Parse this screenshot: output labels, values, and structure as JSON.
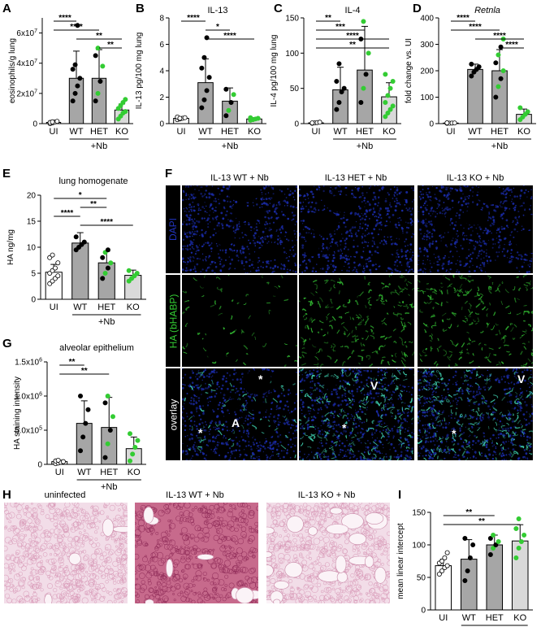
{
  "panels": {
    "A": {
      "label": "A"
    },
    "B": {
      "label": "B"
    },
    "C": {
      "label": "C"
    },
    "D": {
      "label": "D"
    },
    "E": {
      "label": "E"
    },
    "F": {
      "label": "F"
    },
    "G": {
      "label": "G"
    },
    "H": {
      "label": "H"
    },
    "I": {
      "label": "I"
    }
  },
  "nb_label": "+Nb",
  "chart_data": [
    {
      "id": "A",
      "type": "bar",
      "title": "",
      "ylabel": "eosinophils/g lung",
      "ylim": [
        0,
        70000000
      ],
      "yticks": [
        "0",
        "2x10^7",
        "4x10^7",
        "6x10^7"
      ],
      "ytick_values": [
        0,
        20000000,
        40000000,
        60000000
      ],
      "categories": [
        "UI",
        "WT",
        "HET",
        "KO"
      ],
      "values": [
        800000,
        30000000,
        30000000,
        9000000
      ],
      "errors": [
        400000,
        18000000,
        19000000,
        4000000
      ],
      "points": [
        [
          0,
          0.5,
          1,
          1.5,
          0.8,
          1.2
        ],
        [
          15,
          20,
          25,
          30,
          36,
          39,
          65
        ],
        [
          15,
          20,
          28,
          38,
          45,
          50
        ],
        [
          3,
          5,
          7,
          8,
          10,
          12,
          14,
          16
        ]
      ],
      "point_scale": 1000000,
      "sig": [
        {
          "from": 0,
          "to": 1,
          "text": "****"
        },
        {
          "from": 0,
          "to": 2,
          "text": "****"
        },
        {
          "from": 1,
          "to": 3,
          "text": "**"
        },
        {
          "from": 2,
          "to": 3,
          "text": "**"
        }
      ]
    },
    {
      "id": "B",
      "type": "bar",
      "title": "IL-13",
      "ylabel": "IL-13 pg/100 mg lung",
      "ylim": [
        0,
        8
      ],
      "yticks": [
        "0",
        "2",
        "4",
        "6",
        "8"
      ],
      "ytick_values": [
        0,
        2,
        4,
        6,
        8
      ],
      "categories": [
        "UI",
        "WT",
        "HET",
        "KO"
      ],
      "values": [
        0.4,
        3.1,
        1.7,
        0.35
      ],
      "errors": [
        0.1,
        1.8,
        1.0,
        0.1
      ],
      "points": [
        [
          0.3,
          0.35,
          0.4,
          0.45,
          0.5,
          0.4
        ],
        [
          1.2,
          1.8,
          2.5,
          3.5,
          4.2,
          5.0,
          6.5
        ],
        [
          0.6,
          1.0,
          1.6,
          2.2,
          2.6
        ],
        [
          0.25,
          0.3,
          0.35,
          0.4,
          0.45
        ]
      ],
      "point_scale": 1,
      "sig": [
        {
          "from": 0,
          "to": 1,
          "text": "****"
        },
        {
          "from": 1,
          "to": 2,
          "text": "*"
        },
        {
          "from": 1,
          "to": 3,
          "text": "****"
        }
      ]
    },
    {
      "id": "C",
      "type": "bar",
      "title": "IL-4",
      "ylabel": "IL-4 pg/100 mg lung",
      "ylim": [
        0,
        150
      ],
      "yticks": [
        "0",
        "50",
        "100",
        "150"
      ],
      "ytick_values": [
        0,
        50,
        100,
        150
      ],
      "categories": [
        "UI",
        "WT",
        "HET",
        "KO"
      ],
      "values": [
        1,
        48,
        76,
        38
      ],
      "errors": [
        1,
        32,
        62,
        20
      ],
      "points": [
        [
          0.5,
          1,
          1.5,
          2,
          1
        ],
        [
          20,
          30,
          45,
          50,
          60,
          85
        ],
        [
          30,
          50,
          70,
          100,
          120,
          145
        ],
        [
          10,
          15,
          20,
          25,
          30,
          40,
          50,
          60,
          70
        ]
      ],
      "point_scale": 1,
      "sig": [
        {
          "from": 0,
          "to": 1,
          "text": "**"
        },
        {
          "from": 0,
          "to": 2,
          "text": "***"
        },
        {
          "from": 0,
          "to": 3,
          "text": "****"
        },
        {
          "from": 0,
          "to": 3,
          "text": "**"
        }
      ]
    },
    {
      "id": "D",
      "type": "bar",
      "title": "Retnla",
      "ylabel": "fold change vs. UI",
      "ylim": [
        0,
        400
      ],
      "yticks": [
        "0",
        "100",
        "200",
        "300",
        "400"
      ],
      "ytick_values": [
        0,
        100,
        200,
        300,
        400
      ],
      "categories": [
        "UI",
        "WT",
        "HET",
        "KO"
      ],
      "values": [
        2,
        205,
        200,
        35
      ],
      "errors": [
        1,
        20,
        80,
        20
      ],
      "points": [
        [
          1,
          1.5,
          2,
          2.5,
          3
        ],
        [
          180,
          195,
          205,
          215,
          225
        ],
        [
          100,
          140,
          170,
          200,
          230,
          260,
          290,
          320
        ],
        [
          15,
          25,
          35,
          45,
          60
        ]
      ],
      "point_scale": 1,
      "sig": [
        {
          "from": 0,
          "to": 1,
          "text": "****"
        },
        {
          "from": 0,
          "to": 2,
          "text": "****"
        },
        {
          "from": 1,
          "to": 3,
          "text": "****"
        },
        {
          "from": 2,
          "to": 3,
          "text": "****"
        }
      ]
    },
    {
      "id": "E",
      "type": "bar",
      "title": "lung homogenate",
      "ylabel": "HA ng/mg",
      "ylim": [
        0,
        20
      ],
      "yticks": [
        "0",
        "5",
        "10",
        "15",
        "20"
      ],
      "ytick_values": [
        0,
        5,
        10,
        15,
        20
      ],
      "categories": [
        "UI",
        "WT",
        "HET",
        "KO"
      ],
      "values": [
        5.2,
        10.8,
        7.0,
        4.6
      ],
      "errors": [
        1.5,
        2.0,
        2.2,
        1.0
      ],
      "points": [
        [
          3,
          3.5,
          4,
          4.5,
          5,
          5.5,
          6,
          7,
          8,
          8.5
        ],
        [
          9.5,
          10,
          10.5,
          11,
          12
        ],
        [
          4,
          5,
          6,
          7,
          8,
          9,
          9.5
        ],
        [
          3.5,
          4,
          4.5,
          5,
          5.5
        ]
      ],
      "point_scale": 1,
      "sig": [
        {
          "from": 0,
          "to": 2,
          "text": "*"
        },
        {
          "from": 1,
          "to": 2,
          "text": "**"
        },
        {
          "from": 0,
          "to": 1,
          "text": "****"
        },
        {
          "from": 1,
          "to": 3,
          "text": "****"
        }
      ]
    },
    {
      "id": "G",
      "type": "bar",
      "title": "alveolar epithelium",
      "ylabel": "HA staining intensity",
      "ylim": [
        0,
        1500000
      ],
      "yticks": [
        "0",
        "5.0x10^5",
        "1.0x10^6",
        "1.5x10^6"
      ],
      "ytick_values": [
        0,
        500000,
        1000000,
        1500000
      ],
      "categories": [
        "UI",
        "WT",
        "HET",
        "KO"
      ],
      "values": [
        40000,
        600000,
        540000,
        230000
      ],
      "errors": [
        20000,
        330000,
        440000,
        170000
      ],
      "points": [
        [
          10,
          20,
          30,
          40,
          50,
          60
        ],
        [
          200,
          400,
          600,
          800,
          1000
        ],
        [
          100,
          300,
          500,
          700,
          900,
          1000
        ],
        [
          50,
          150,
          250,
          350,
          450
        ]
      ],
      "point_scale": 1000,
      "sig": [
        {
          "from": 0,
          "to": 1,
          "text": "**"
        },
        {
          "from": 0,
          "to": 2,
          "text": "**"
        }
      ]
    },
    {
      "id": "I",
      "type": "bar",
      "title": "",
      "ylabel": "mean linear intercept",
      "ylim": [
        0,
        150
      ],
      "yticks": [
        "0",
        "50",
        "100",
        "150"
      ],
      "ytick_values": [
        0,
        50,
        100,
        150
      ],
      "categories": [
        "UI",
        "WT",
        "HET",
        "KO"
      ],
      "values": [
        68,
        78,
        100,
        106
      ],
      "errors": [
        10,
        30,
        15,
        25
      ],
      "points": [
        [
          55,
          60,
          65,
          68,
          72,
          75,
          80,
          88
        ],
        [
          45,
          60,
          80,
          100,
          110
        ],
        [
          85,
          95,
          100,
          105,
          110,
          115
        ],
        [
          80,
          95,
          105,
          115,
          125,
          140
        ]
      ],
      "point_scale": 1,
      "sig": [
        {
          "from": 0,
          "to": 2,
          "text": "**"
        },
        {
          "from": 0,
          "to": 3,
          "text": "**"
        }
      ]
    }
  ],
  "microscopy": {
    "columns": [
      "IL-13 WT + Nb",
      "IL-13 HET + Nb",
      "IL-13 KO + Nb"
    ],
    "rows": [
      "DAPI",
      "HA (bHABP)",
      "overlay"
    ],
    "markers": [
      {
        "text": "*"
      },
      {
        "text": "*"
      },
      {
        "text": "A"
      },
      {
        "text": "V"
      },
      {
        "text": "*"
      },
      {
        "text": "V"
      },
      {
        "text": "*"
      }
    ]
  },
  "histology": {
    "titles": [
      "uninfected",
      "IL-13 WT + Nb",
      "IL-13 KO + Nb"
    ]
  },
  "colors": {
    "ui": "#ffffff",
    "wt": "#a6a6a6",
    "het": "#a6a6a6",
    "ko": "#d9d9d9",
    "green": "#33cc33",
    "dapi": "#1a2ba6",
    "ha": "#2fb02f"
  }
}
